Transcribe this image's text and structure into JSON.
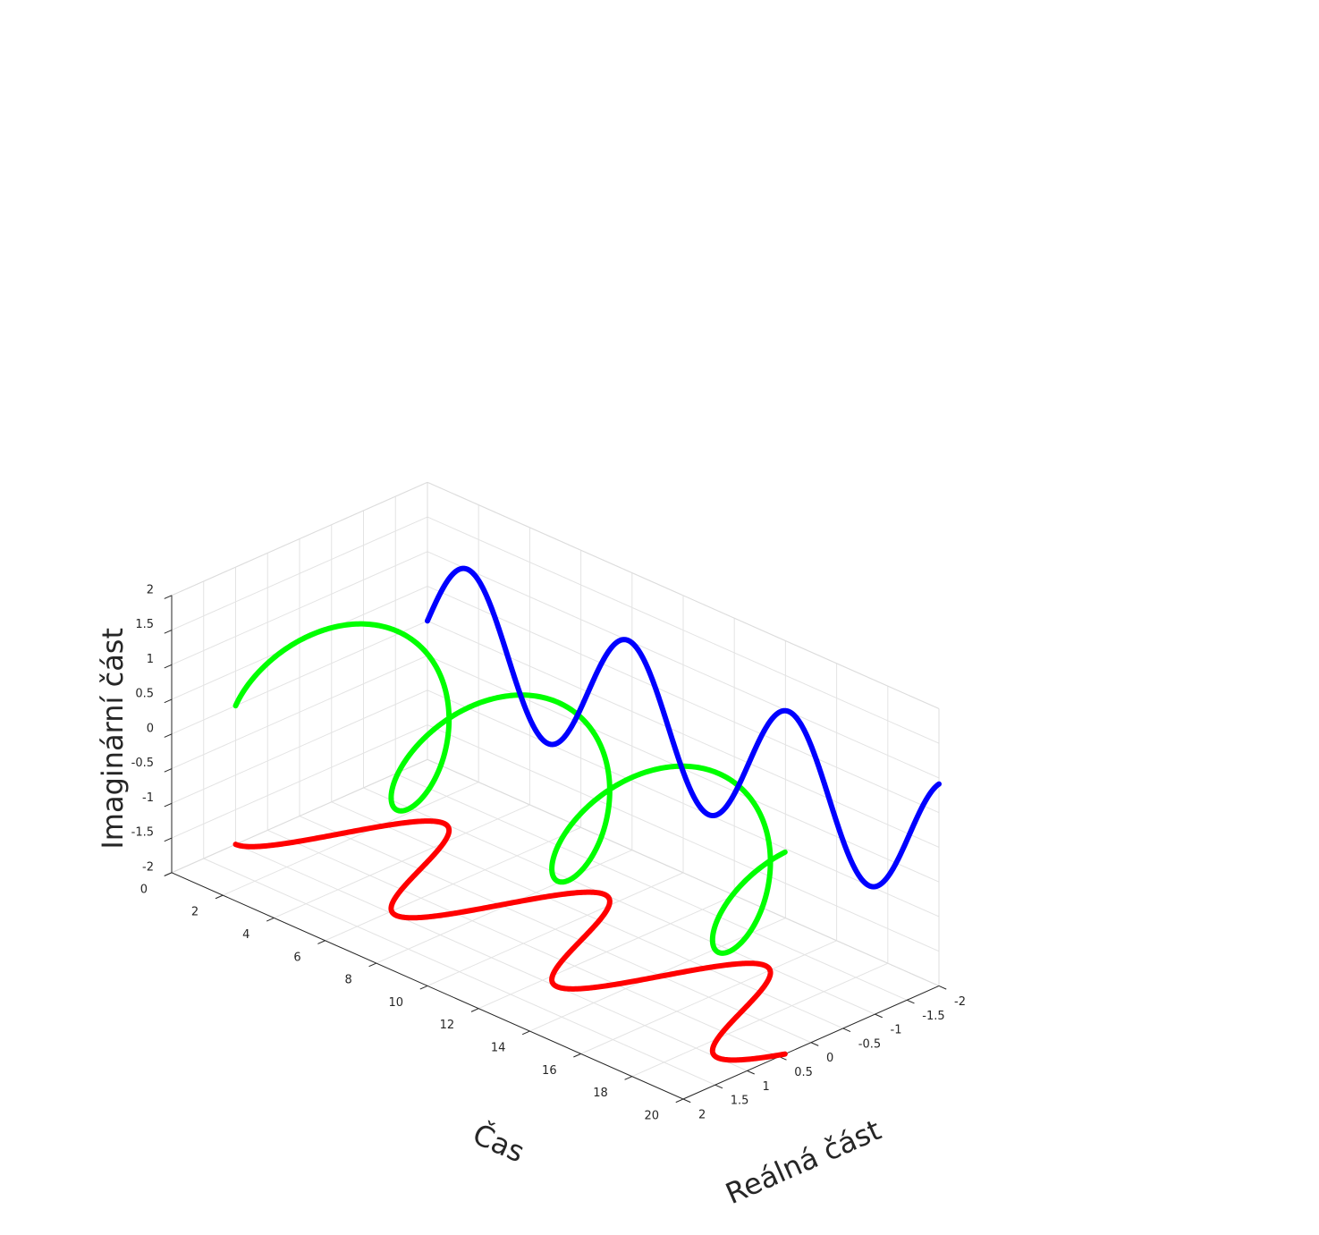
{
  "chart_data": {
    "type": "line3d",
    "title": "",
    "xlabel": "Čas",
    "ylabel": "Reálná část",
    "zlabel": "Imaginární část",
    "xlim": [
      0,
      20
    ],
    "ylim": [
      -2,
      2
    ],
    "zlim": [
      -2,
      2
    ],
    "x_ticks": [
      "0",
      "2",
      "4",
      "6",
      "8",
      "10",
      "12",
      "14",
      "16",
      "18",
      "20"
    ],
    "y_ticks": [
      "-2",
      "-1.5",
      "-1",
      "-0.5",
      "0",
      "0.5",
      "1",
      "1.5",
      "2"
    ],
    "z_ticks": [
      "-2",
      "-1.5",
      "-1",
      "-0.5",
      "0",
      "0.5",
      "1",
      "1.5",
      "2"
    ],
    "grid": true,
    "signal": {
      "expression": "exp(i*t)",
      "t_range": [
        0,
        20
      ]
    },
    "series": [
      {
        "id": "helix",
        "color": "#00ff00",
        "plane": "3d",
        "x": "t",
        "y": "cos(t)",
        "z": "sin(t)"
      },
      {
        "id": "real-projection",
        "color": "#ff0000",
        "plane": "z=-2",
        "x": "t",
        "y": "cos(t)",
        "z": -2
      },
      {
        "id": "imag-projection",
        "color": "#0000ff",
        "plane": "y=-2",
        "x": "t",
        "y": -2,
        "z": "sin(t)"
      }
    ]
  }
}
